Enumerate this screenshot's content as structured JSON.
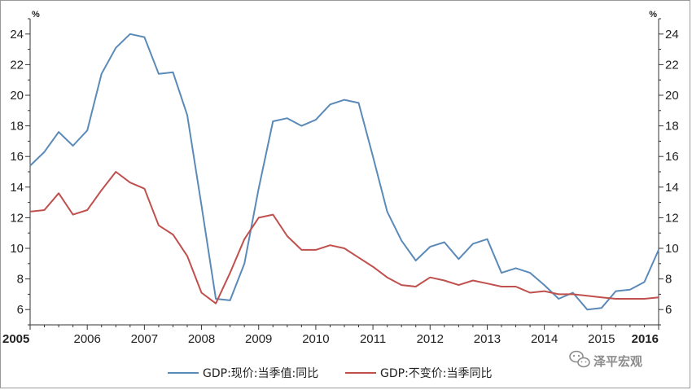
{
  "chart_data": {
    "type": "line",
    "title": "",
    "xlabel": "",
    "ylabel": "%",
    "ylabel_right": "%",
    "ylim": [
      5,
      25
    ],
    "xlim": [
      2005,
      2016
    ],
    "y_ticks": [
      6,
      8,
      10,
      12,
      14,
      16,
      18,
      20,
      22,
      24
    ],
    "x_ticks": [
      2005,
      2006,
      2007,
      2008,
      2009,
      2010,
      2011,
      2012,
      2013,
      2014,
      2015,
      2016
    ],
    "grid": false,
    "legend_position": "bottom",
    "series": [
      {
        "name": "GDP:现价:当季值:同比",
        "color": "#5b8ab8",
        "x": [
          2005,
          2005.25,
          2005.5,
          2005.75,
          2006,
          2006.25,
          2006.5,
          2006.75,
          2007,
          2007.25,
          2007.5,
          2007.75,
          2008,
          2008.25,
          2008.5,
          2008.75,
          2009,
          2009.25,
          2009.5,
          2009.75,
          2010,
          2010.25,
          2010.5,
          2010.75,
          2011,
          2011.25,
          2011.5,
          2011.75,
          2012,
          2012.25,
          2012.5,
          2012.75,
          2013,
          2013.25,
          2013.5,
          2013.75,
          2014,
          2014.25,
          2014.5,
          2014.75,
          2015,
          2015.25,
          2015.5,
          2015.75,
          2016
        ],
        "y": [
          15.4,
          16.3,
          17.6,
          16.7,
          17.7,
          21.4,
          23.1,
          24.0,
          23.8,
          21.4,
          21.5,
          18.7,
          12.8,
          6.7,
          6.6,
          9.0,
          13.9,
          18.3,
          18.5,
          18.0,
          18.4,
          19.4,
          19.7,
          19.5,
          16.0,
          12.4,
          10.5,
          9.2,
          10.1,
          10.4,
          9.3,
          10.3,
          10.6,
          8.4,
          8.7,
          8.4,
          7.6,
          6.7,
          7.1,
          6.0,
          6.1,
          7.2,
          7.3,
          7.8,
          9.9
        ]
      },
      {
        "name": "GDP:不变价:当季同比",
        "color": "#c0504d",
        "x": [
          2005,
          2005.25,
          2005.5,
          2005.75,
          2006,
          2006.25,
          2006.5,
          2006.75,
          2007,
          2007.25,
          2007.5,
          2007.75,
          2008,
          2008.25,
          2008.5,
          2008.75,
          2009,
          2009.25,
          2009.5,
          2009.75,
          2010,
          2010.25,
          2010.5,
          2010.75,
          2011,
          2011.25,
          2011.5,
          2011.75,
          2012,
          2012.25,
          2012.5,
          2012.75,
          2013,
          2013.25,
          2013.5,
          2013.75,
          2014,
          2014.25,
          2014.5,
          2014.75,
          2015,
          2015.25,
          2015.5,
          2015.75,
          2016
        ],
        "y": [
          12.4,
          12.5,
          13.6,
          12.2,
          12.5,
          13.8,
          15.0,
          14.3,
          13.9,
          11.5,
          10.9,
          9.5,
          7.1,
          6.4,
          8.4,
          10.6,
          12.0,
          12.2,
          10.8,
          9.9,
          9.9,
          10.2,
          10.0,
          9.4,
          8.8,
          8.1,
          7.6,
          7.5,
          8.1,
          7.9,
          7.6,
          7.9,
          7.7,
          7.5,
          7.5,
          7.1,
          7.2,
          7.0,
          7.0,
          6.9,
          6.8,
          6.7,
          6.7,
          6.7,
          6.8
        ]
      }
    ]
  },
  "watermark": {
    "icon": "wechat-icon",
    "text": "泽平宏观",
    "color": "#8c8c8c"
  }
}
